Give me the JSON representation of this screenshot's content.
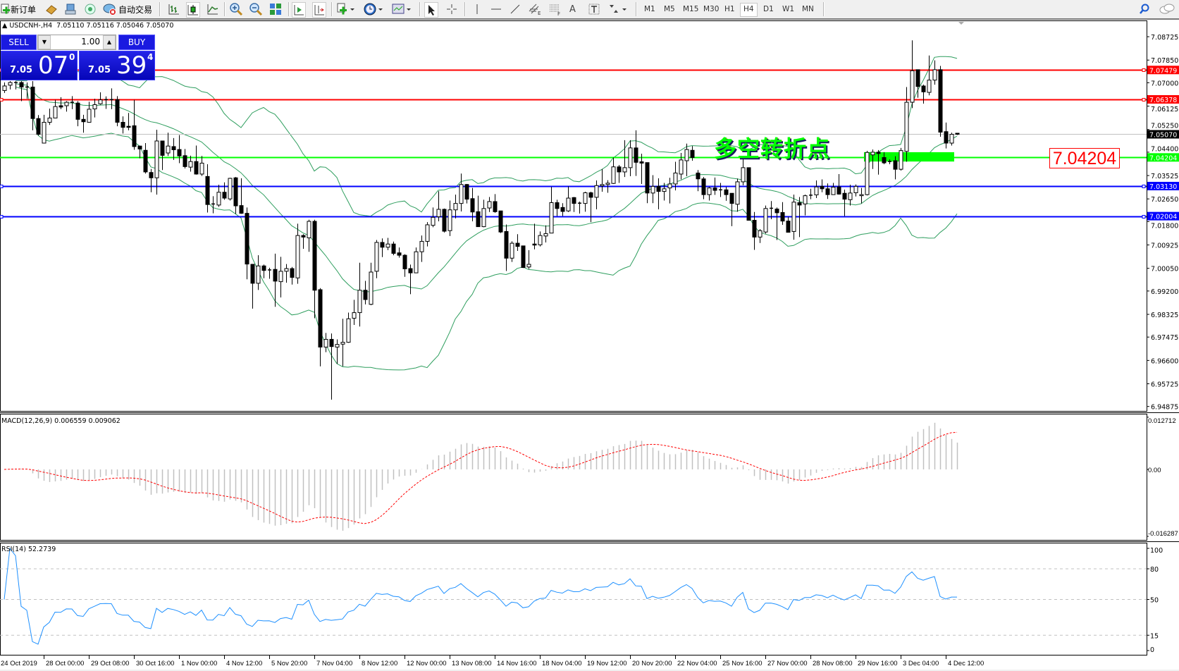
{
  "toolbar": {
    "new_order": "新订单",
    "auto_trading": "自动交易",
    "timeframes": [
      "M1",
      "M5",
      "M15",
      "M30",
      "H1",
      "H4",
      "D1",
      "W1",
      "MN"
    ],
    "active_timeframe": "H4",
    "icons": [
      "new-order-icon",
      "market-watch-icon",
      "navigator-icon",
      "terminal-icon",
      "auto-trading-icon",
      "bar-chart-icon",
      "candlestick-icon",
      "line-chart-icon",
      "zoom-in-icon",
      "zoom-out-icon",
      "tile-windows-icon",
      "auto-scroll-icon",
      "chart-shift-icon",
      "indicators-icon",
      "periods-icon",
      "templates-icon",
      "cursor-icon",
      "crosshair-icon",
      "vertical-line-icon",
      "horizontal-line-icon",
      "trendline-icon",
      "equidistant-channel-icon",
      "fibonacci-icon",
      "text-icon",
      "text-label-icon",
      "arrows-icon",
      "search-icon",
      "chat-icon"
    ]
  },
  "chart": {
    "symbol_line": "USDCNH-,H4  7.05110 7.05116 7.05046 7.05070",
    "macd_label": "MACD(12,26,9) 0.006559 0.009062",
    "rsi_label": "RSI(14) 52.2739"
  },
  "trade_panel": {
    "sell_label": "SELL",
    "buy_label": "BUY",
    "lot": "1.00",
    "sell_prefix": "7.05",
    "sell_big": "07",
    "sell_sup": "0",
    "buy_prefix": "7.05",
    "buy_big": "39",
    "buy_sup": "4"
  },
  "annotation": {
    "text": "多空转折点",
    "price_box": "7.04204",
    "text_color": "#00ff00",
    "zone_color": "#00ff00"
  },
  "chart_data": {
    "type": "candlestick",
    "symbol": "USDCNH-",
    "timeframe": "H4",
    "colors": {
      "bull_body": "#ffffff",
      "bear_body": "#000000",
      "bollinger": "#2e9e5e",
      "macd_hist": "#c0c0c0",
      "macd_signal": "#ff0000",
      "rsi": "#1e90ff",
      "bid_line": "#c0c0c0"
    },
    "y_ticks": [
      "7.08725",
      "7.07850",
      "7.07000",
      "7.06125",
      "7.05250",
      "7.04400",
      "7.03525",
      "7.02650",
      "7.01800",
      "7.00925",
      "7.00050",
      "6.99200",
      "6.98325",
      "6.97475",
      "6.96600",
      "6.95725",
      "6.94875"
    ],
    "x_ticks": [
      "24 Oct 2019",
      "28 Oct 00:00",
      "29 Oct 08:00",
      "30 Oct 16:00",
      "1 Nov 00:00",
      "4 Nov 12:00",
      "5 Nov 20:00",
      "7 Nov 04:00",
      "8 Nov 12:00",
      "12 Nov 00:00",
      "13 Nov 08:00",
      "14 Nov 16:00",
      "18 Nov 04:00",
      "19 Nov 12:00",
      "20 Nov 20:00",
      "22 Nov 04:00",
      "25 Nov 16:00",
      "27 Nov 00:00",
      "28 Nov 08:00",
      "29 Nov 16:00",
      "3 Dec 04:00",
      "4 Dec 12:00"
    ],
    "hlines": [
      {
        "price": "7.07479",
        "color": "#ff0000"
      },
      {
        "price": "7.06378",
        "color": "#ff0000"
      },
      {
        "price": "7.04204",
        "color": "#00ff00"
      },
      {
        "price": "7.03130",
        "color": "#0000ff"
      },
      {
        "price": "7.02004",
        "color": "#0000ff"
      }
    ],
    "bid": "7.05070",
    "zone": {
      "from_bar": 153,
      "price_top": 7.044,
      "price_bottom": 7.0405
    },
    "indicators": {
      "bollinger": {
        "period": 20,
        "deviation": 2
      },
      "macd": {
        "fast": 12,
        "slow": 26,
        "signal": 9,
        "axis": [
          "0.012712",
          "0.00",
          "-0.016287"
        ],
        "range": [
          -0.016287,
          0.012712
        ]
      },
      "rsi": {
        "period": 14,
        "levels": [
          80,
          50,
          15
        ],
        "axis": [
          "100",
          "80",
          "50",
          "15",
          "0"
        ],
        "range": [
          0,
          100
        ]
      }
    },
    "candles": [
      [
        7.0671,
        7.0701,
        7.0662,
        7.0688
      ],
      [
        7.0691,
        7.0706,
        7.0675,
        7.0701
      ],
      [
        7.0701,
        7.0706,
        7.0675,
        7.07
      ],
      [
        7.0701,
        7.0706,
        7.0631,
        7.0684
      ],
      [
        7.0684,
        7.0701,
        7.064,
        7.0681
      ],
      [
        7.0684,
        7.0706,
        7.0522,
        7.0566
      ],
      [
        7.0566,
        7.0579,
        7.0502,
        7.0507
      ],
      [
        7.0474,
        7.058,
        7.0474,
        7.0552
      ],
      [
        7.0552,
        7.0603,
        7.0542,
        7.0568
      ],
      [
        7.0568,
        7.0636,
        7.0568,
        7.0611
      ],
      [
        7.0614,
        7.0646,
        7.0601,
        7.0609
      ],
      [
        7.0614,
        7.0631,
        7.0592,
        7.0627
      ],
      [
        7.0627,
        7.065,
        7.0601,
        7.0626
      ],
      [
        7.0624,
        7.0631,
        7.0537,
        7.0563
      ],
      [
        7.0563,
        7.058,
        7.0513,
        7.0554
      ],
      [
        7.0552,
        7.0629,
        7.0552,
        7.0601
      ],
      [
        7.0602,
        7.064,
        7.057,
        7.0618
      ],
      [
        7.0621,
        7.0664,
        7.0618,
        7.0636
      ],
      [
        7.0636,
        7.0649,
        7.0602,
        7.0637
      ],
      [
        7.0637,
        7.0679,
        7.0601,
        7.0636
      ],
      [
        7.0637,
        7.065,
        7.0537,
        7.0552
      ],
      [
        7.0552,
        7.0574,
        7.051,
        7.0533
      ],
      [
        7.0537,
        7.0587,
        7.0522,
        7.0533
      ],
      [
        7.0539,
        7.0636,
        7.0449,
        7.0461
      ],
      [
        7.0463,
        7.0463,
        7.0417,
        7.0452
      ],
      [
        7.0447,
        7.0474,
        7.036,
        7.0366
      ],
      [
        7.0364,
        7.0377,
        7.029,
        7.0344
      ],
      [
        7.0344,
        7.0524,
        7.0281,
        7.0482
      ],
      [
        7.0482,
        7.0482,
        7.0373,
        7.0428
      ],
      [
        7.0437,
        7.0513,
        7.0426,
        7.0463
      ],
      [
        7.0461,
        7.0493,
        7.0411,
        7.0449
      ],
      [
        7.045,
        7.0504,
        7.0399,
        7.0426
      ],
      [
        7.0427,
        7.0452,
        7.0379,
        7.0386
      ],
      [
        7.0384,
        7.0427,
        7.0367,
        7.0405
      ],
      [
        7.0405,
        7.0465,
        7.0356,
        7.0358
      ],
      [
        7.0358,
        7.0426,
        7.0351,
        7.0399
      ],
      [
        7.0349,
        7.0395,
        7.0214,
        7.0244
      ],
      [
        7.0246,
        7.0275,
        7.0211,
        7.0243
      ],
      [
        7.0242,
        7.0318,
        7.0235,
        7.029
      ],
      [
        7.029,
        7.0327,
        7.0262,
        7.0268
      ],
      [
        7.0265,
        7.0344,
        7.0259,
        7.0342
      ],
      [
        7.0344,
        7.0347,
        7.0209,
        7.0239
      ],
      [
        7.024,
        7.0342,
        7.0209,
        7.0211
      ],
      [
        7.0211,
        7.0233,
        6.9964,
        7.0021
      ],
      [
        7.002,
        7.002,
        6.9854,
        6.9949
      ],
      [
        6.9949,
        7.0054,
        6.9924,
        7.0014
      ],
      [
        7.0014,
        7.0019,
        6.9968,
        6.9997
      ],
      [
        6.9999,
        7.0007,
        6.9966,
        6.9998
      ],
      [
        7.0001,
        7.006,
        6.9861,
        6.9957
      ],
      [
        6.9955,
        7.0048,
        6.9896,
        6.9994
      ],
      [
        6.9994,
        7.0021,
        6.9951,
        7.0004
      ],
      [
        7.0004,
        7.001,
        6.9944,
        6.9971
      ],
      [
        6.9969,
        7.0172,
        6.9947,
        7.0128
      ],
      [
        7.0128,
        7.0133,
        7.0078,
        7.0122
      ],
      [
        7.0119,
        7.0187,
        7.0067,
        7.0181
      ],
      [
        7.0181,
        7.0187,
        6.9818,
        6.9923
      ],
      [
        6.9925,
        6.9931,
        6.9638,
        6.971
      ],
      [
        6.971,
        6.9763,
        6.9691,
        6.9739
      ],
      [
        6.9739,
        6.9761,
        6.9513,
        6.9712
      ],
      [
        6.971,
        6.9739,
        6.9647,
        6.972
      ],
      [
        6.9721,
        6.9816,
        6.9638,
        6.9728
      ],
      [
        6.9728,
        6.9839,
        6.9726,
        6.9816
      ],
      [
        6.9818,
        6.9887,
        6.9793,
        6.9839
      ],
      [
        6.9839,
        7.0026,
        6.9787,
        6.9923
      ],
      [
        6.9923,
        6.9958,
        6.987,
        6.9888
      ],
      [
        6.987,
        7.0026,
        6.9867,
        6.9991
      ],
      [
        6.9994,
        7.0111,
        6.9968,
        7.0102
      ],
      [
        7.0102,
        7.0117,
        7.0047,
        7.0084
      ],
      [
        7.0084,
        7.0119,
        7.0073,
        7.0096
      ],
      [
        7.0096,
        7.0105,
        7.0054,
        7.0061
      ],
      [
        7.0063,
        7.0083,
        7.0045,
        7.0054
      ],
      [
        7.0054,
        7.0058,
        6.9973,
        7.0003
      ],
      [
        7.0004,
        7.0019,
        6.9908,
        6.9988
      ],
      [
        6.9988,
        7.0083,
        6.9988,
        7.0067
      ],
      [
        7.0067,
        7.0128,
        7.0029,
        7.0106
      ],
      [
        7.0106,
        7.0178,
        7.0087,
        7.0168
      ],
      [
        7.0166,
        7.0233,
        7.0159,
        7.0196
      ],
      [
        7.0198,
        7.0294,
        7.0181,
        7.0226
      ],
      [
        7.0226,
        7.0229,
        7.0139,
        7.0144
      ],
      [
        7.0146,
        7.0259,
        7.0126,
        7.0224
      ],
      [
        7.0224,
        7.0281,
        7.0192,
        7.0248
      ],
      [
        7.0248,
        7.036,
        7.0218,
        7.0319
      ],
      [
        7.0319,
        7.0321,
        7.0248,
        7.0264
      ],
      [
        7.0266,
        7.0306,
        7.0181,
        7.0216
      ],
      [
        7.0217,
        7.0277,
        7.016,
        7.0161
      ],
      [
        7.0161,
        7.0262,
        7.0159,
        7.0229
      ],
      [
        7.0231,
        7.0272,
        7.0216,
        7.0255
      ],
      [
        7.0255,
        7.0283,
        7.0213,
        7.0217
      ],
      [
        7.022,
        7.022,
        7.0137,
        7.0141
      ],
      [
        7.0143,
        7.0169,
        6.9995,
        7.0043
      ],
      [
        7.0043,
        7.0106,
        7.0029,
        7.0099
      ],
      [
        7.0099,
        7.0133,
        7.007,
        7.0087
      ],
      [
        7.0089,
        7.0089,
        7.0006,
        7.0008
      ],
      [
        7.001,
        7.0073,
        7.0003,
        7.002
      ],
      [
        7.0096,
        7.0172,
        7.0076,
        7.0092
      ],
      [
        7.0093,
        7.0143,
        7.0087,
        7.0128
      ],
      [
        7.0126,
        7.0166,
        7.0102,
        7.0135
      ],
      [
        7.0137,
        7.031,
        7.0137,
        7.0251
      ],
      [
        7.0251,
        7.0262,
        7.0201,
        7.0229
      ],
      [
        7.0233,
        7.0249,
        7.0201,
        7.0218
      ],
      [
        7.022,
        7.0312,
        7.0216,
        7.0268
      ],
      [
        7.027,
        7.0272,
        7.0216,
        7.0248
      ],
      [
        7.0248,
        7.0255,
        7.021,
        7.0249
      ],
      [
        7.0248,
        7.0292,
        7.0217,
        7.0288
      ],
      [
        7.0288,
        7.0292,
        7.0178,
        7.0271
      ],
      [
        7.0271,
        7.0334,
        7.0226,
        7.0315
      ],
      [
        7.0314,
        7.0377,
        7.0292,
        7.0319
      ],
      [
        7.0319,
        7.0335,
        7.0288,
        7.0324
      ],
      [
        7.0323,
        7.042,
        7.0321,
        7.0385
      ],
      [
        7.0385,
        7.0392,
        7.0325,
        7.0366
      ],
      [
        7.0366,
        7.0485,
        7.0347,
        7.0382
      ],
      [
        7.0382,
        7.0485,
        7.035,
        7.0456
      ],
      [
        7.0456,
        7.0522,
        7.0351,
        7.0402
      ],
      [
        7.0404,
        7.0434,
        7.0321,
        7.0399
      ],
      [
        7.0401,
        7.0401,
        7.0249,
        7.0287
      ],
      [
        7.0287,
        7.0354,
        7.0249,
        7.0312
      ],
      [
        7.0312,
        7.0342,
        7.0226,
        7.0293
      ],
      [
        7.0293,
        7.0325,
        7.0259,
        7.0303
      ],
      [
        7.0306,
        7.0344,
        7.0248,
        7.0321
      ],
      [
        7.0321,
        7.0404,
        7.0297,
        7.0362
      ],
      [
        7.0358,
        7.0437,
        7.0338,
        7.0411
      ],
      [
        7.0408,
        7.0472,
        7.035,
        7.045
      ],
      [
        7.0447,
        7.0463,
        7.0408,
        7.042
      ],
      [
        7.0362,
        7.0373,
        7.0294,
        7.034
      ],
      [
        7.034,
        7.0347,
        7.0264,
        7.0281
      ],
      [
        7.0281,
        7.031,
        7.0259,
        7.0306
      ],
      [
        7.0306,
        7.0345,
        7.028,
        7.0297
      ],
      [
        7.0298,
        7.0325,
        7.0272,
        7.0299
      ],
      [
        7.0299,
        7.031,
        7.0258,
        7.0281
      ],
      [
        7.0286,
        7.0286,
        7.0163,
        7.0248
      ],
      [
        7.0245,
        7.0341,
        7.0217,
        7.0329
      ],
      [
        7.0329,
        7.0413,
        7.0316,
        7.0382
      ],
      [
        7.0382,
        7.0382,
        7.0185,
        7.0185
      ],
      [
        7.0185,
        7.0216,
        7.0074,
        7.0122
      ],
      [
        7.0122,
        7.0152,
        7.01,
        7.0146
      ],
      [
        7.0141,
        7.024,
        7.0135,
        7.0229
      ],
      [
        7.0229,
        7.0257,
        7.0189,
        7.023
      ],
      [
        7.0227,
        7.0233,
        7.0111,
        7.0213
      ],
      [
        7.0214,
        7.0253,
        7.0168,
        7.0182
      ],
      [
        7.0182,
        7.0198,
        7.014,
        7.014
      ],
      [
        7.0143,
        7.0281,
        7.0112,
        7.0253
      ],
      [
        7.0251,
        7.0272,
        7.0122,
        7.0242
      ],
      [
        7.0246,
        7.0281,
        7.0203,
        7.0277
      ],
      [
        7.0279,
        7.0303,
        7.0264,
        7.0278
      ],
      [
        7.028,
        7.0334,
        7.0268,
        7.031
      ],
      [
        7.0312,
        7.0338,
        7.029,
        7.0303
      ],
      [
        7.0303,
        7.0323,
        7.0265,
        7.0281
      ],
      [
        7.0281,
        7.0325,
        7.028,
        7.0309
      ],
      [
        7.031,
        7.0358,
        7.0281,
        7.0283
      ],
      [
        7.0286,
        7.03,
        7.0201,
        7.0264
      ],
      [
        7.0262,
        7.0318,
        7.024,
        7.0287
      ],
      [
        7.0288,
        7.0319,
        7.0274,
        7.0312
      ],
      [
        7.0277,
        7.0306,
        7.0248,
        7.0281
      ],
      [
        7.0281,
        7.0445,
        7.0278,
        7.0439
      ],
      [
        7.043,
        7.045,
        7.0377,
        7.044
      ],
      [
        7.044,
        7.0448,
        7.0356,
        7.0435
      ],
      [
        7.042,
        7.044,
        7.0395,
        7.04
      ],
      [
        7.0405,
        7.0413,
        7.0395,
        7.0402
      ],
      [
        7.0408,
        7.0425,
        7.0338,
        7.0376
      ],
      [
        7.0376,
        7.0456,
        7.0371,
        7.0446
      ],
      [
        7.0443,
        7.0684,
        7.0404,
        7.0627
      ],
      [
        7.0627,
        7.0859,
        7.0605,
        7.0745
      ],
      [
        7.0749,
        7.0749,
        7.0644,
        7.0686
      ],
      [
        7.0688,
        7.0693,
        7.0622,
        7.0666
      ],
      [
        7.0664,
        7.0802,
        7.0653,
        7.071
      ],
      [
        7.071,
        7.0784,
        7.0693,
        7.0749
      ],
      [
        7.0749,
        7.0763,
        7.0498,
        7.0515
      ],
      [
        7.0517,
        7.0551,
        7.0454,
        7.0474
      ],
      [
        7.0474,
        7.0513,
        7.0465,
        7.0507
      ],
      [
        7.0511,
        7.05116,
        7.05046,
        7.0507
      ]
    ]
  }
}
